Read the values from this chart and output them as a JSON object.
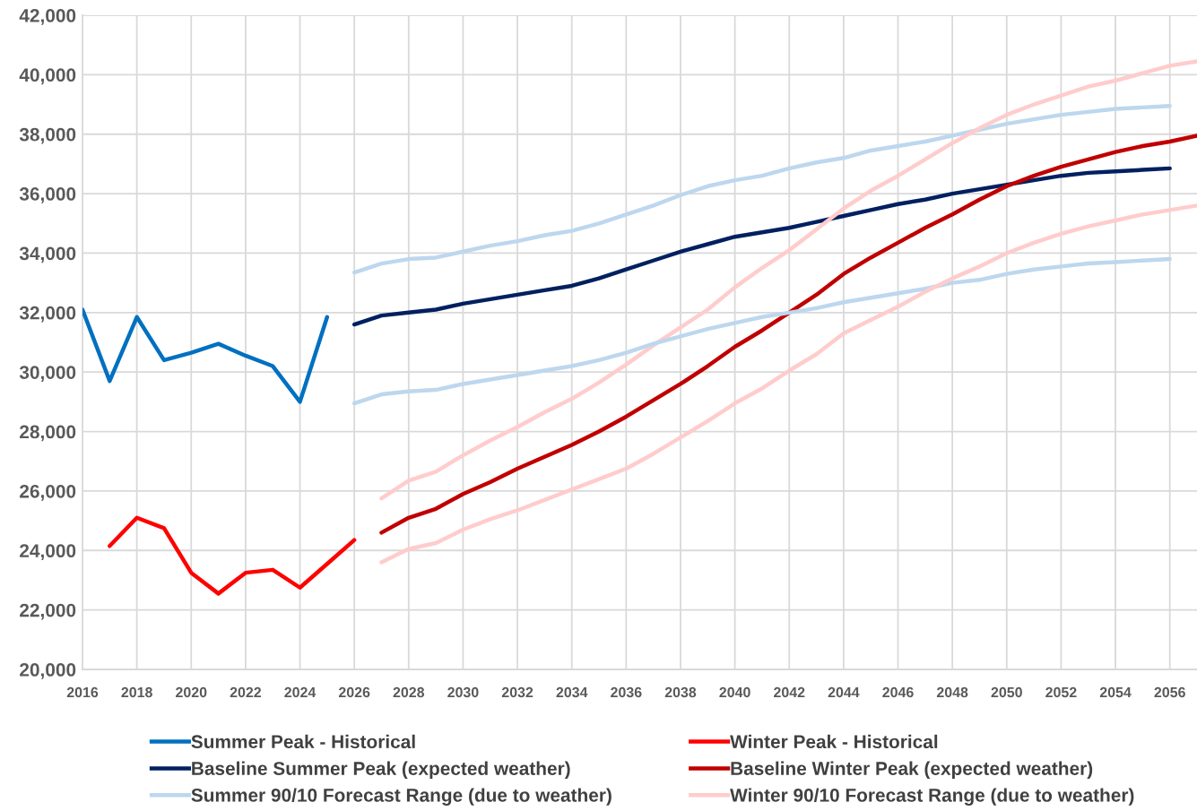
{
  "chart_data": {
    "type": "line",
    "xlim": [
      2016,
      2057
    ],
    "xticks": [
      2016,
      2018,
      2020,
      2022,
      2024,
      2026,
      2028,
      2030,
      2032,
      2034,
      2036,
      2038,
      2040,
      2042,
      2044,
      2046,
      2048,
      2050,
      2052,
      2054,
      2056
    ],
    "ylim": [
      20000,
      42000
    ],
    "yticks": [
      {
        "value": 20000,
        "label": "20,000"
      },
      {
        "value": 22000,
        "label": "22,000"
      },
      {
        "value": 24000,
        "label": "24,000"
      },
      {
        "value": 26000,
        "label": "26,000"
      },
      {
        "value": 28000,
        "label": "28,000"
      },
      {
        "value": 30000,
        "label": "30,000"
      },
      {
        "value": 32000,
        "label": "32,000"
      },
      {
        "value": 34000,
        "label": "34,000"
      },
      {
        "value": 36000,
        "label": "36,000"
      },
      {
        "value": 38000,
        "label": "38,000"
      },
      {
        "value": 40000,
        "label": "40,000"
      },
      {
        "value": 42000,
        "label": "42,000"
      }
    ],
    "grid": true,
    "legend": "bottom",
    "series": [
      {
        "name": "Summer Peak - Historical",
        "color": "#0070c0",
        "x": [
          2016,
          2017,
          2018,
          2019,
          2020,
          2021,
          2022,
          2023,
          2024,
          2025
        ],
        "values": [
          32100,
          29700,
          31850,
          30400,
          30650,
          30950,
          30550,
          30200,
          29000,
          31850
        ]
      },
      {
        "name": "Winter Peak - Historical",
        "color": "#ff0000",
        "x": [
          2017,
          2018,
          2019,
          2020,
          2021,
          2022,
          2023,
          2024,
          2025,
          2026
        ],
        "values": [
          24150,
          25100,
          24750,
          23250,
          22550,
          23250,
          23350,
          22750,
          23550,
          24350
        ]
      },
      {
        "name": "Baseline Summer Peak (expected weather)",
        "color": "#002060",
        "x": [
          2026,
          2027,
          2028,
          2029,
          2030,
          2031,
          2032,
          2033,
          2034,
          2035,
          2036,
          2037,
          2038,
          2039,
          2040,
          2041,
          2042,
          2043,
          2044,
          2045,
          2046,
          2047,
          2048,
          2049,
          2050,
          2051,
          2052,
          2053,
          2054,
          2055,
          2056
        ],
        "values": [
          31600,
          31900,
          32000,
          32100,
          32300,
          32450,
          32600,
          32750,
          32900,
          33150,
          33450,
          33750,
          34050,
          34300,
          34550,
          34700,
          34850,
          35050,
          35250,
          35450,
          35650,
          35800,
          36000,
          36150,
          36300,
          36450,
          36600,
          36700,
          36750,
          36800,
          36850
        ]
      },
      {
        "name": "Baseline Winter Peak (expected weather)",
        "color": "#c00000",
        "x": [
          2027,
          2028,
          2029,
          2030,
          2031,
          2032,
          2033,
          2034,
          2035,
          2036,
          2037,
          2038,
          2039,
          2040,
          2041,
          2042,
          2043,
          2044,
          2045,
          2046,
          2047,
          2048,
          2049,
          2050,
          2051,
          2052,
          2053,
          2054,
          2055,
          2056,
          2057
        ],
        "values": [
          24600,
          25100,
          25400,
          25900,
          26300,
          26750,
          27150,
          27550,
          28000,
          28500,
          29050,
          29600,
          30200,
          30850,
          31400,
          32000,
          32600,
          33300,
          33850,
          34350,
          34850,
          35300,
          35800,
          36250,
          36600,
          36900,
          37150,
          37400,
          37600,
          37750,
          37950
        ]
      },
      {
        "name": "Summer 90/10 Forecast Range (due to weather)",
        "color": "#bdd7ee",
        "x": [
          2026,
          2027,
          2028,
          2029,
          2030,
          2031,
          2032,
          2033,
          2034,
          2035,
          2036,
          2037,
          2038,
          2039,
          2040,
          2041,
          2042,
          2043,
          2044,
          2045,
          2046,
          2047,
          2048,
          2049,
          2050,
          2051,
          2052,
          2053,
          2054,
          2055,
          2056
        ],
        "values": [
          33350,
          33650,
          33800,
          33850,
          34050,
          34250,
          34400,
          34600,
          34750,
          35000,
          35300,
          35600,
          35950,
          36250,
          36450,
          36600,
          36850,
          37050,
          37200,
          37450,
          37600,
          37750,
          37950,
          38150,
          38350,
          38500,
          38650,
          38750,
          38850,
          38900,
          38950
        ]
      },
      {
        "name": "Winter 90/10 Forecast Range (due to weather)",
        "color": "#ffcccc",
        "x": [
          2027,
          2028,
          2029,
          2030,
          2031,
          2032,
          2033,
          2034,
          2035,
          2036,
          2037,
          2038,
          2039,
          2040,
          2041,
          2042,
          2043,
          2044,
          2045,
          2046,
          2047,
          2048,
          2049,
          2050,
          2051,
          2052,
          2053,
          2054,
          2055,
          2056,
          2057
        ],
        "values": [
          25750,
          26350,
          26650,
          27200,
          27700,
          28150,
          28650,
          29100,
          29650,
          30250,
          30900,
          31500,
          32100,
          32850,
          33500,
          34100,
          34800,
          35500,
          36100,
          36600,
          37150,
          37700,
          38200,
          38650,
          39000,
          39300,
          39600,
          39800,
          40050,
          40300,
          40450
        ]
      },
      {
        "color": "#bdd7ee",
        "x": [
          2026,
          2027,
          2028,
          2029,
          2030,
          2031,
          2032,
          2033,
          2034,
          2035,
          2036,
          2037,
          2038,
          2039,
          2040,
          2041,
          2042,
          2043,
          2044,
          2045,
          2046,
          2047,
          2048,
          2049,
          2050,
          2051,
          2052,
          2053,
          2054,
          2055,
          2056
        ],
        "values": [
          28950,
          29250,
          29350,
          29400,
          29600,
          29750,
          29900,
          30050,
          30200,
          30400,
          30650,
          30950,
          31200,
          31450,
          31650,
          31850,
          32000,
          32150,
          32350,
          32500,
          32650,
          32800,
          33000,
          33100,
          33300,
          33450,
          33550,
          33650,
          33700,
          33750,
          33800
        ]
      },
      {
        "color": "#ffcccc",
        "x": [
          2027,
          2028,
          2029,
          2030,
          2031,
          2032,
          2033,
          2034,
          2035,
          2036,
          2037,
          2038,
          2039,
          2040,
          2041,
          2042,
          2043,
          2044,
          2045,
          2046,
          2047,
          2048,
          2049,
          2050,
          2051,
          2052,
          2053,
          2054,
          2055,
          2056,
          2057
        ],
        "values": [
          23600,
          24050,
          24250,
          24700,
          25050,
          25350,
          25700,
          26050,
          26400,
          26750,
          27250,
          27800,
          28350,
          28950,
          29450,
          30050,
          30600,
          31300,
          31750,
          32200,
          32700,
          33150,
          33550,
          34000,
          34350,
          34650,
          34900,
          35100,
          35300,
          35450,
          35600
        ]
      }
    ]
  }
}
